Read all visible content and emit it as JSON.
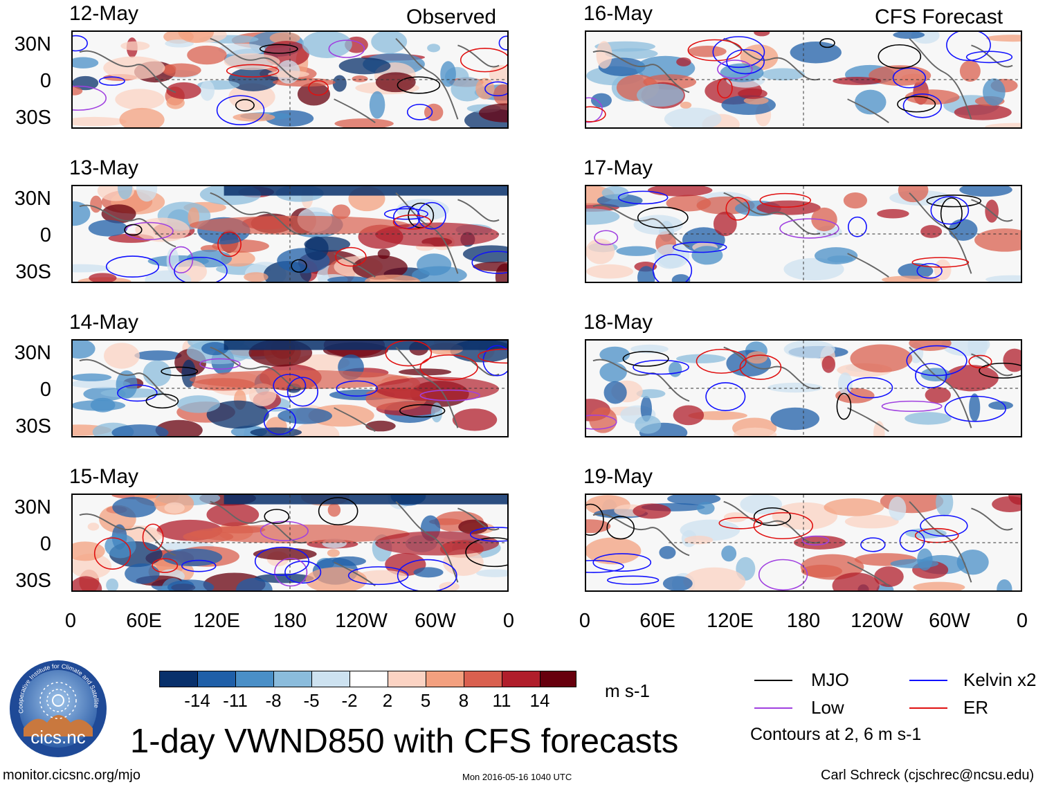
{
  "header": {
    "observed_label": "Observed",
    "forecast_label": "CFS Forecast"
  },
  "panels_observed": [
    {
      "date": "12-May"
    },
    {
      "date": "13-May"
    },
    {
      "date": "14-May"
    },
    {
      "date": "15-May"
    }
  ],
  "panels_forecast": [
    {
      "date": "16-May"
    },
    {
      "date": "17-May"
    },
    {
      "date": "18-May"
    },
    {
      "date": "19-May"
    }
  ],
  "axes": {
    "lat_ticks": [
      "30N",
      "0",
      "30S"
    ],
    "lon_ticks": [
      "0",
      "60E",
      "120E",
      "180",
      "120W",
      "60W",
      "0"
    ]
  },
  "colorbar": {
    "colors": [
      "#08306b",
      "#1f5fa8",
      "#4a8fc7",
      "#8bbcdc",
      "#cde2f0",
      "#ffffff",
      "#fbd3c3",
      "#f3a07f",
      "#d9604f",
      "#b01e2b",
      "#67000d"
    ],
    "labels": [
      "-14",
      "-11",
      "-8",
      "-5",
      "-2",
      "2",
      "5",
      "8",
      "11",
      "14"
    ],
    "units": "m s-1"
  },
  "legend": {
    "items": [
      {
        "label": "MJO",
        "color": "#000000"
      },
      {
        "label": "Kelvin x2",
        "color": "#1010ff"
      },
      {
        "label": "Low",
        "color": "#a040e0"
      },
      {
        "label": "ER",
        "color": "#e01010"
      }
    ],
    "note": "Contours at 2, 6 m s-1"
  },
  "footer": {
    "title": "1-day VWND850 with CFS forecasts",
    "url": "monitor.cicsnc.org/mjo",
    "timestamp": "Mon 2016-05-16 1040 UTC",
    "credit": "Carl Schreck (cjschrec@ncsu.edu)"
  },
  "logo": {
    "ring_text": "Cooperative Institute for Climate and Satellites",
    "name": "cics.nc"
  }
}
